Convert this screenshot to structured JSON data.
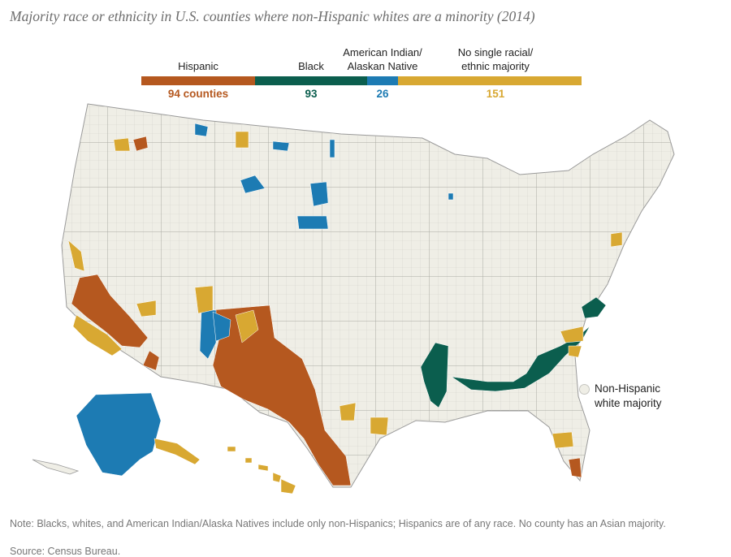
{
  "title": "Majority race or ethnicity in U.S. counties where non-Hispanic whites are a minority (2014)",
  "legend": {
    "categories": [
      {
        "label_lines": [
          "Hispanic"
        ],
        "count": "94 counties",
        "color": "#b5581f"
      },
      {
        "label_lines": [
          "Black"
        ],
        "count": "93",
        "color": "#0b5e4e"
      },
      {
        "label_lines": [
          "American Indian/",
          "Alaskan Native"
        ],
        "count": "26",
        "color": "#1d7bb3"
      },
      {
        "label_lines": [
          "No single racial/",
          "ethnic majority"
        ],
        "count": "151",
        "color": "#d8a832"
      }
    ]
  },
  "map_legend": {
    "non_hispanic_white": {
      "label_lines": [
        "Non-Hispanic",
        "white majority"
      ],
      "color": "#efeee6"
    }
  },
  "note": "Note: Blacks, whites, and American Indian/Alaska Natives include only non-Hispanics; Hispanics are of any race. No county has an Asian majority.",
  "source": "Source: Census Bureau."
}
